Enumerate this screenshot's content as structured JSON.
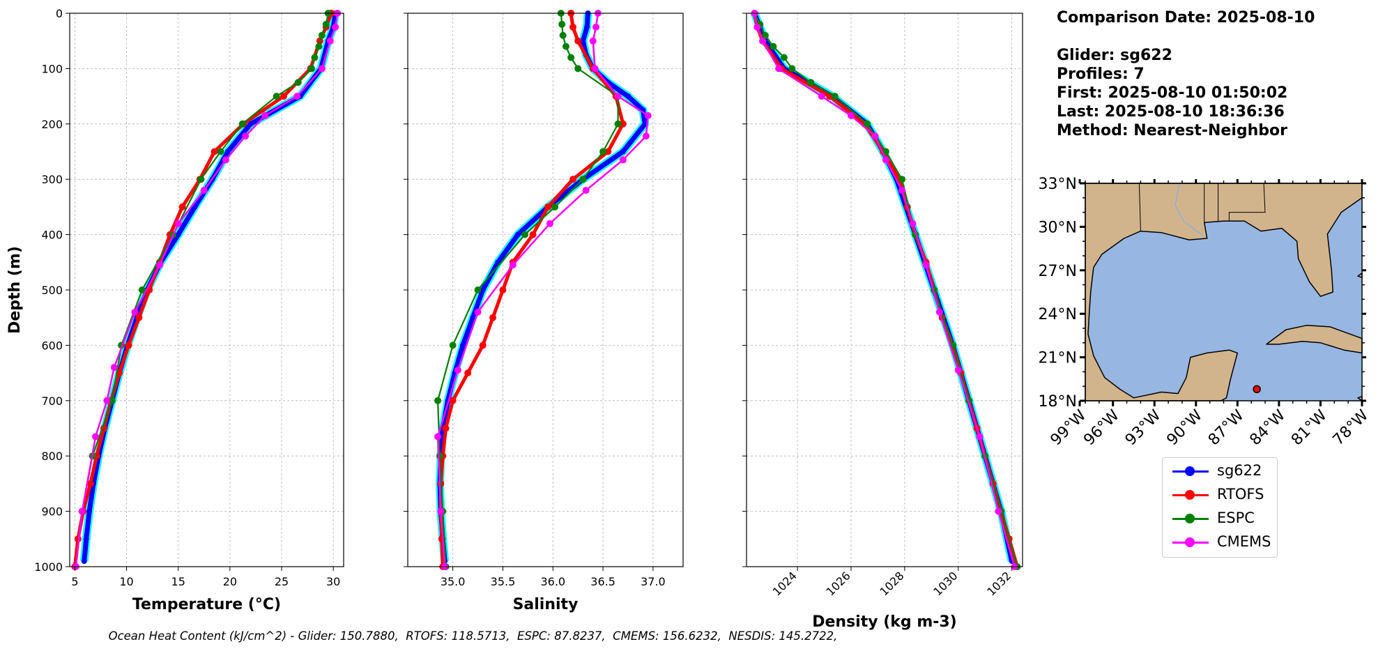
{
  "chart_data": [
    {
      "type": "line",
      "xlabel": "Temperature (°C)",
      "ylabel": "Depth (m)",
      "xlim": [
        4.5,
        31
      ],
      "ylim": [
        1000,
        0
      ],
      "xticks": [
        5,
        10,
        15,
        20,
        25,
        30
      ],
      "yticks": [
        0,
        100,
        200,
        300,
        400,
        500,
        600,
        700,
        800,
        900,
        1000
      ],
      "grid": true,
      "series": [
        {
          "name": "sg622",
          "color": "#0000ff",
          "y": [
            0,
            25,
            50,
            100,
            150,
            200,
            250,
            300,
            350,
            400,
            450,
            500,
            550,
            600,
            650,
            700,
            750,
            800,
            850,
            900,
            950,
            990
          ],
          "x": [
            30.2,
            30.0,
            29.5,
            28.8,
            26.8,
            22.0,
            19.8,
            18.3,
            16.6,
            15.0,
            13.3,
            12.0,
            11.0,
            10.1,
            9.3,
            8.6,
            7.9,
            7.3,
            6.8,
            6.4,
            6.1,
            5.9
          ]
        },
        {
          "name": "RTOFS",
          "color": "#ff0000",
          "y": [
            0,
            25,
            50,
            100,
            150,
            200,
            250,
            300,
            350,
            400,
            450,
            500,
            550,
            600,
            650,
            700,
            750,
            800,
            850,
            900,
            950,
            1000
          ],
          "x": [
            29.8,
            29.3,
            28.7,
            27.8,
            25.2,
            21.3,
            18.5,
            17.1,
            15.4,
            14.2,
            13.2,
            12.2,
            11.2,
            10.2,
            9.3,
            8.5,
            7.8,
            7.1,
            6.5,
            5.8,
            5.3,
            5.0
          ]
        },
        {
          "name": "ESPC",
          "color": "#008000",
          "y": [
            0,
            20,
            40,
            60,
            80,
            100,
            125,
            150,
            200,
            250,
            300,
            400,
            500,
            600,
            700,
            800,
            900,
            1000
          ],
          "x": [
            29.5,
            29.3,
            28.9,
            28.6,
            28.2,
            27.9,
            26.6,
            24.5,
            21.2,
            19.1,
            17.2,
            14.5,
            11.5,
            9.5,
            8.6,
            6.7,
            5.7,
            5.1
          ]
        },
        {
          "name": "CMEMS",
          "color": "#ff00ff",
          "y": [
            0,
            25,
            50,
            100,
            150,
            185,
            222,
            265,
            320,
            380,
            455,
            540,
            640,
            700,
            765,
            900,
            1000
          ],
          "x": [
            30.4,
            30.2,
            29.7,
            28.9,
            26.5,
            23.4,
            21.5,
            19.6,
            17.5,
            15.0,
            13.2,
            10.8,
            8.8,
            8.1,
            7.0,
            5.7,
            5.1
          ]
        }
      ]
    },
    {
      "type": "line",
      "xlabel": "Salinity",
      "ylabel": "",
      "xlim": [
        34.55,
        37.3
      ],
      "ylim": [
        1000,
        0
      ],
      "xticks": [
        35.0,
        35.5,
        36.0,
        36.5,
        37.0
      ],
      "grid": true,
      "series": [
        {
          "name": "sg622",
          "color": "#0000ff",
          "y": [
            0,
            25,
            50,
            75,
            100,
            125,
            150,
            175,
            200,
            250,
            300,
            350,
            400,
            450,
            500,
            550,
            600,
            650,
            700,
            750,
            800,
            850,
            900,
            950,
            990
          ],
          "x": [
            36.35,
            36.34,
            36.3,
            36.33,
            36.4,
            36.55,
            36.75,
            36.9,
            36.92,
            36.7,
            36.3,
            35.95,
            35.65,
            35.45,
            35.3,
            35.2,
            35.1,
            35.02,
            34.95,
            34.9,
            34.88,
            34.87,
            34.88,
            34.9,
            34.92
          ]
        },
        {
          "name": "RTOFS",
          "color": "#ff0000",
          "y": [
            0,
            25,
            50,
            100,
            150,
            200,
            250,
            300,
            350,
            400,
            450,
            500,
            550,
            600,
            650,
            700,
            750,
            800,
            850,
            900,
            950,
            1000
          ],
          "x": [
            36.18,
            36.2,
            36.25,
            36.4,
            36.63,
            36.7,
            36.55,
            36.2,
            35.95,
            35.8,
            35.6,
            35.5,
            35.4,
            35.3,
            35.15,
            35.0,
            34.93,
            34.9,
            34.88,
            34.88,
            34.89,
            34.9
          ]
        },
        {
          "name": "ESPC",
          "color": "#008000",
          "y": [
            0,
            20,
            40,
            60,
            80,
            100,
            150,
            200,
            250,
            300,
            350,
            400,
            500,
            600,
            700,
            800,
            900,
            1000
          ],
          "x": [
            36.08,
            36.09,
            36.1,
            36.13,
            36.18,
            36.25,
            36.65,
            36.65,
            36.5,
            36.3,
            36.02,
            35.72,
            35.25,
            35.0,
            34.85,
            34.87,
            34.9,
            34.93
          ]
        },
        {
          "name": "CMEMS",
          "color": "#ff00ff",
          "y": [
            0,
            25,
            50,
            100,
            150,
            185,
            222,
            265,
            320,
            380,
            455,
            540,
            645,
            765,
            900,
            1000
          ],
          "x": [
            36.45,
            36.43,
            36.4,
            36.42,
            36.65,
            36.95,
            36.93,
            36.7,
            36.33,
            35.97,
            35.6,
            35.25,
            35.05,
            34.85,
            34.88,
            34.92
          ]
        }
      ]
    },
    {
      "type": "line",
      "xlabel": "Density (kg m-3)",
      "ylabel": "",
      "xlim": [
        1022.1,
        1032.4
      ],
      "ylim": [
        1000,
        0
      ],
      "xticks": [
        1024,
        1026,
        1028,
        1030,
        1032
      ],
      "grid": true,
      "series": [
        {
          "name": "sg622",
          "color": "#0000ff",
          "y": [
            0,
            25,
            50,
            100,
            150,
            200,
            250,
            300,
            400,
            500,
            600,
            700,
            800,
            900,
            990
          ],
          "x": [
            1022.4,
            1022.6,
            1022.8,
            1023.5,
            1025.3,
            1026.6,
            1027.2,
            1027.7,
            1028.4,
            1029.1,
            1029.8,
            1030.4,
            1031.0,
            1031.6,
            1032.0
          ]
        },
        {
          "name": "RTOFS",
          "color": "#ff0000",
          "y": [
            0,
            25,
            50,
            100,
            150,
            200,
            250,
            300,
            350,
            400,
            450,
            500,
            550,
            600,
            650,
            700,
            750,
            800,
            850,
            900,
            950,
            1000
          ],
          "x": [
            1022.4,
            1022.5,
            1022.7,
            1023.4,
            1025.2,
            1026.5,
            1027.2,
            1027.8,
            1028.1,
            1028.4,
            1028.8,
            1029.1,
            1029.4,
            1029.8,
            1030.1,
            1030.4,
            1030.7,
            1031.0,
            1031.3,
            1031.6,
            1031.9,
            1032.2
          ]
        },
        {
          "name": "ESPC",
          "color": "#008000",
          "y": [
            0,
            20,
            40,
            60,
            80,
            100,
            125,
            150,
            200,
            250,
            300,
            400,
            500,
            600,
            700,
            800,
            900,
            1000
          ],
          "x": [
            1022.4,
            1022.6,
            1022.8,
            1023.1,
            1023.5,
            1023.8,
            1024.5,
            1025.4,
            1026.6,
            1027.3,
            1027.9,
            1028.4,
            1029.1,
            1029.8,
            1030.4,
            1031.0,
            1031.6,
            1032.2
          ]
        },
        {
          "name": "CMEMS",
          "color": "#ff00ff",
          "y": [
            0,
            25,
            50,
            100,
            150,
            185,
            222,
            265,
            320,
            380,
            455,
            540,
            645,
            765,
            900,
            1000
          ],
          "x": [
            1022.4,
            1022.5,
            1022.7,
            1023.3,
            1024.9,
            1026.0,
            1026.9,
            1027.3,
            1027.9,
            1028.3,
            1028.8,
            1029.3,
            1030.0,
            1030.8,
            1031.5,
            1032.1
          ]
        }
      ]
    }
  ],
  "info": {
    "comparison_date": "Comparison Date: 2025-08-10",
    "glider": "Glider: sg622",
    "profiles": "Profiles: 7",
    "first": "First: 2025-08-10 01:50:02",
    "last": "Last: 2025-08-10 18:36:36",
    "method": "Method: Nearest-Neighbor"
  },
  "map": {
    "lon_ticks": [
      "99°W",
      "96°W",
      "93°W",
      "90°W",
      "87°W",
      "84°W",
      "81°W",
      "78°W"
    ],
    "lat_ticks": [
      "33°N",
      "30°N",
      "27°N",
      "24°N",
      "21°N",
      "18°N"
    ],
    "land_color": "#d2b48c",
    "ocean_color": "#97b6e1",
    "glider_lon": -85.6,
    "glider_lat": 18.8,
    "glider_color": "#ff0000"
  },
  "legend": {
    "items": [
      {
        "label": "sg622",
        "color": "#0000ff"
      },
      {
        "label": "RTOFS",
        "color": "#ff0000"
      },
      {
        "label": "ESPC",
        "color": "#008000"
      },
      {
        "label": "CMEMS",
        "color": "#ff00ff"
      }
    ]
  },
  "footer": "Ocean Heat Content (kJ/cm^2) - Glider: 150.7880,  RTOFS: 118.5713,  ESPC: 87.8237,  CMEMS: 156.6232,  NESDIS: 145.2722,"
}
